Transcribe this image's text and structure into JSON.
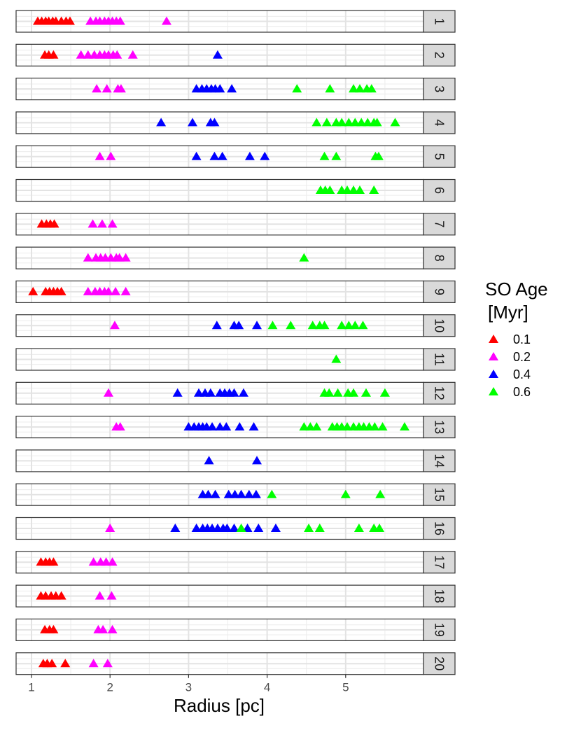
{
  "chart_data": {
    "type": "scatter",
    "title": "",
    "xlabel": "Radius [pc]",
    "ylabel": "",
    "xlim": [
      0.8,
      6.0
    ],
    "xticks": [
      1,
      2,
      3,
      4,
      5
    ],
    "grid": true,
    "marker": "triangle",
    "legend": {
      "title_lines": [
        "SO Age",
        "[Myr]"
      ],
      "position": "right",
      "entries": [
        {
          "label": "0.1",
          "color": "#ff0000"
        },
        {
          "label": "0.2",
          "color": "#ff00ff"
        },
        {
          "label": "0.4",
          "color": "#0000ff"
        },
        {
          "label": "0.6",
          "color": "#00ff00"
        }
      ]
    },
    "panels": [
      {
        "label": "1",
        "series": {
          "0.1": [
            1.08,
            1.13,
            1.18,
            1.22,
            1.27,
            1.31,
            1.38,
            1.44,
            1.49
          ],
          "0.2": [
            1.75,
            1.82,
            1.87,
            1.93,
            1.98,
            2.03,
            2.08,
            2.13,
            2.72
          ]
        }
      },
      {
        "label": "2",
        "series": {
          "0.1": [
            1.17,
            1.22,
            1.28
          ],
          "0.2": [
            1.63,
            1.72,
            1.8,
            1.87,
            1.93,
            1.98,
            2.04,
            2.09,
            2.29
          ],
          "0.4": [
            3.37
          ]
        }
      },
      {
        "label": "3",
        "series": {
          "0.2": [
            1.83,
            1.96,
            2.1,
            2.14
          ],
          "0.4": [
            3.1,
            3.17,
            3.23,
            3.29,
            3.34,
            3.4,
            3.55
          ],
          "0.6": [
            4.38,
            4.8,
            5.1,
            5.18,
            5.27,
            5.33
          ]
        }
      },
      {
        "label": "4",
        "series": {
          "0.4": [
            2.65,
            3.05,
            3.28,
            3.33
          ],
          "0.6": [
            4.63,
            4.76,
            4.88,
            4.95,
            5.04,
            5.12,
            5.2,
            5.28,
            5.36,
            5.4,
            5.63
          ]
        }
      },
      {
        "label": "5",
        "series": {
          "0.2": [
            1.87,
            2.01
          ],
          "0.4": [
            3.1,
            3.33,
            3.43,
            3.78,
            3.97
          ],
          "0.6": [
            4.73,
            4.88,
            5.38,
            5.42
          ]
        }
      },
      {
        "label": "6",
        "series": {
          "0.6": [
            4.68,
            4.74,
            4.8,
            4.95,
            5.02,
            5.1,
            5.18,
            5.36
          ]
        }
      },
      {
        "label": "7",
        "series": {
          "0.1": [
            1.13,
            1.19,
            1.24,
            1.29
          ],
          "0.2": [
            1.78,
            1.9,
            2.03
          ]
        }
      },
      {
        "label": "8",
        "series": {
          "0.2": [
            1.72,
            1.82,
            1.88,
            1.94,
            2.01,
            2.08,
            2.12,
            2.2
          ],
          "0.6": [
            4.47
          ]
        }
      },
      {
        "label": "9",
        "series": {
          "0.1": [
            1.02,
            1.18,
            1.23,
            1.28,
            1.33,
            1.38
          ],
          "0.2": [
            1.72,
            1.81,
            1.87,
            1.93,
            1.98,
            2.07,
            2.2
          ]
        }
      },
      {
        "label": "10",
        "series": {
          "0.2": [
            2.06
          ],
          "0.4": [
            3.36,
            3.58,
            3.64,
            3.87
          ],
          "0.6": [
            4.07,
            4.3,
            4.58,
            4.67,
            4.73,
            4.95,
            5.04,
            5.12,
            5.22
          ]
        }
      },
      {
        "label": "11",
        "series": {
          "0.6": [
            4.88
          ]
        }
      },
      {
        "label": "12",
        "series": {
          "0.2": [
            1.98
          ],
          "0.4": [
            2.86,
            3.13,
            3.21,
            3.28,
            3.4,
            3.46,
            3.52,
            3.58,
            3.7
          ],
          "0.6": [
            4.73,
            4.79,
            4.9,
            5.03,
            5.1,
            5.26,
            5.5
          ]
        }
      },
      {
        "label": "13",
        "series": {
          "0.2": [
            2.08,
            2.13
          ],
          "0.4": [
            3.0,
            3.07,
            3.13,
            3.18,
            3.23,
            3.3,
            3.4,
            3.48,
            3.65,
            3.83
          ],
          "0.6": [
            4.47,
            4.55,
            4.63,
            4.83,
            4.89,
            4.95,
            5.02,
            5.1,
            5.17,
            5.23,
            5.3,
            5.37,
            5.47,
            5.75
          ]
        }
      },
      {
        "label": "14",
        "series": {
          "0.4": [
            3.26,
            3.87
          ]
        }
      },
      {
        "label": "15",
        "series": {
          "0.4": [
            3.18,
            3.25,
            3.34,
            3.51,
            3.59,
            3.67,
            3.77,
            3.86
          ],
          "0.6": [
            4.06,
            5.0,
            5.44
          ]
        }
      },
      {
        "label": "16",
        "series": {
          "0.2": [
            2.0
          ],
          "0.4": [
            2.83,
            3.1,
            3.18,
            3.24,
            3.3,
            3.37,
            3.44,
            3.49,
            3.58,
            3.75,
            3.89,
            4.11
          ],
          "0.6": [
            3.67,
            4.53,
            4.67,
            5.17,
            5.36,
            5.43
          ]
        }
      },
      {
        "label": "17",
        "series": {
          "0.1": [
            1.12,
            1.18,
            1.23,
            1.28
          ],
          "0.2": [
            1.79,
            1.88,
            1.95,
            2.03
          ]
        }
      },
      {
        "label": "18",
        "series": {
          "0.1": [
            1.12,
            1.18,
            1.25,
            1.31,
            1.38
          ],
          "0.2": [
            1.87,
            2.02
          ]
        }
      },
      {
        "label": "19",
        "series": {
          "0.1": [
            1.17,
            1.23,
            1.28
          ],
          "0.2": [
            1.85,
            1.91,
            2.03
          ]
        }
      },
      {
        "label": "20",
        "series": {
          "0.1": [
            1.15,
            1.2,
            1.26,
            1.43
          ],
          "0.2": [
            1.79,
            1.97
          ]
        }
      }
    ]
  }
}
